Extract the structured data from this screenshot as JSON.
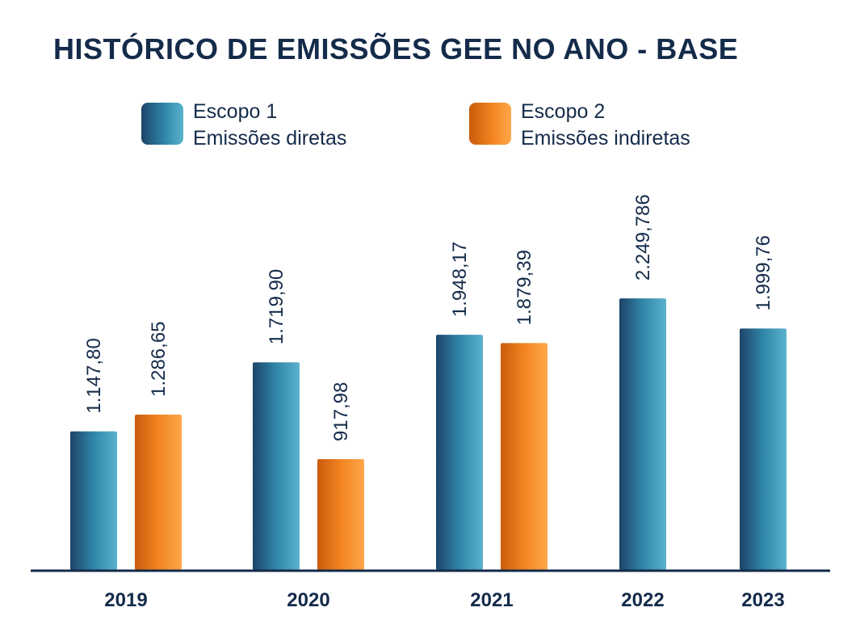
{
  "chart_data": {
    "type": "bar",
    "title": "HISTÓRICO DE EMISSÕES GEE  NO ANO - BASE",
    "categories": [
      "2019",
      "2020",
      "2021",
      "2022",
      "2023"
    ],
    "series": [
      {
        "name": "Escopo 1",
        "subtitle": "Emissões diretas",
        "values": [
          1147.8,
          1719.9,
          1948.17,
          2249.786,
          1999.76
        ],
        "labels": [
          "1.147,80",
          "1.719,90",
          "1.948,17",
          "2.249,786",
          "1.999,76"
        ],
        "color": "#2a7fa3"
      },
      {
        "name": "Escopo 2",
        "subtitle": "Emissões indiretas",
        "values": [
          1286.65,
          917.98,
          1879.39,
          null,
          null
        ],
        "labels": [
          "1.286,65",
          "917,98",
          "1.879,39",
          null,
          null
        ],
        "color": "#f0801a"
      }
    ],
    "ylim": [
      0,
      3400
    ],
    "grid": false,
    "legend_position": "top"
  }
}
